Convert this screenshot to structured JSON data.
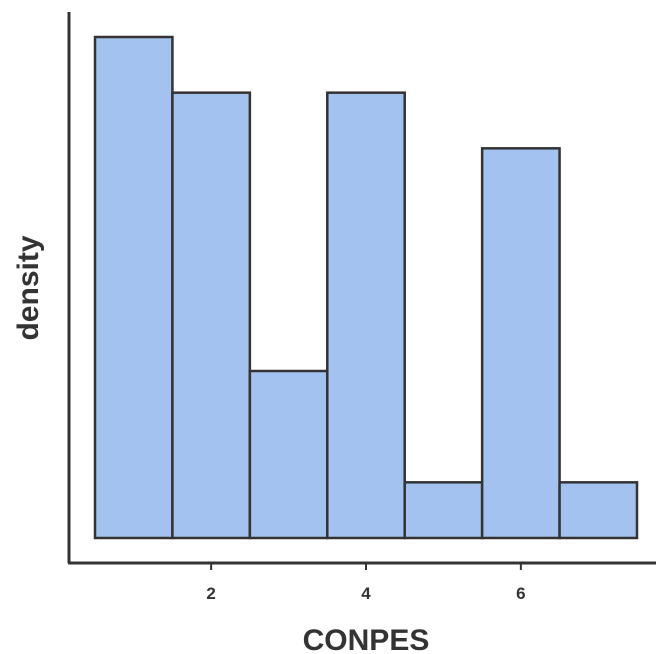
{
  "chart_data": {
    "type": "bar",
    "histogram": true,
    "xlabel": "CONPES",
    "ylabel": "density",
    "xlim": [
      0.5,
      7.5
    ],
    "ylim": [
      0,
      9
    ],
    "bins": [
      {
        "x0": 0.5,
        "x1": 1.5,
        "value": 9
      },
      {
        "x0": 1.5,
        "x1": 2.5,
        "value": 8
      },
      {
        "x0": 2.5,
        "x1": 3.5,
        "value": 3
      },
      {
        "x0": 3.5,
        "x1": 4.5,
        "value": 8
      },
      {
        "x0": 4.5,
        "x1": 5.5,
        "value": 1
      },
      {
        "x0": 5.5,
        "x1": 6.5,
        "value": 7
      },
      {
        "x0": 6.5,
        "x1": 7.5,
        "value": 1
      }
    ],
    "x_ticks": [
      {
        "value": 2,
        "label": "2"
      },
      {
        "value": 4,
        "label": "4"
      },
      {
        "value": 6,
        "label": "6"
      }
    ],
    "y_ticks": [],
    "grid": false,
    "colors": {
      "bar_fill": "#a4c2f0",
      "bar_stroke": "#333333",
      "axis": "#333333"
    }
  }
}
